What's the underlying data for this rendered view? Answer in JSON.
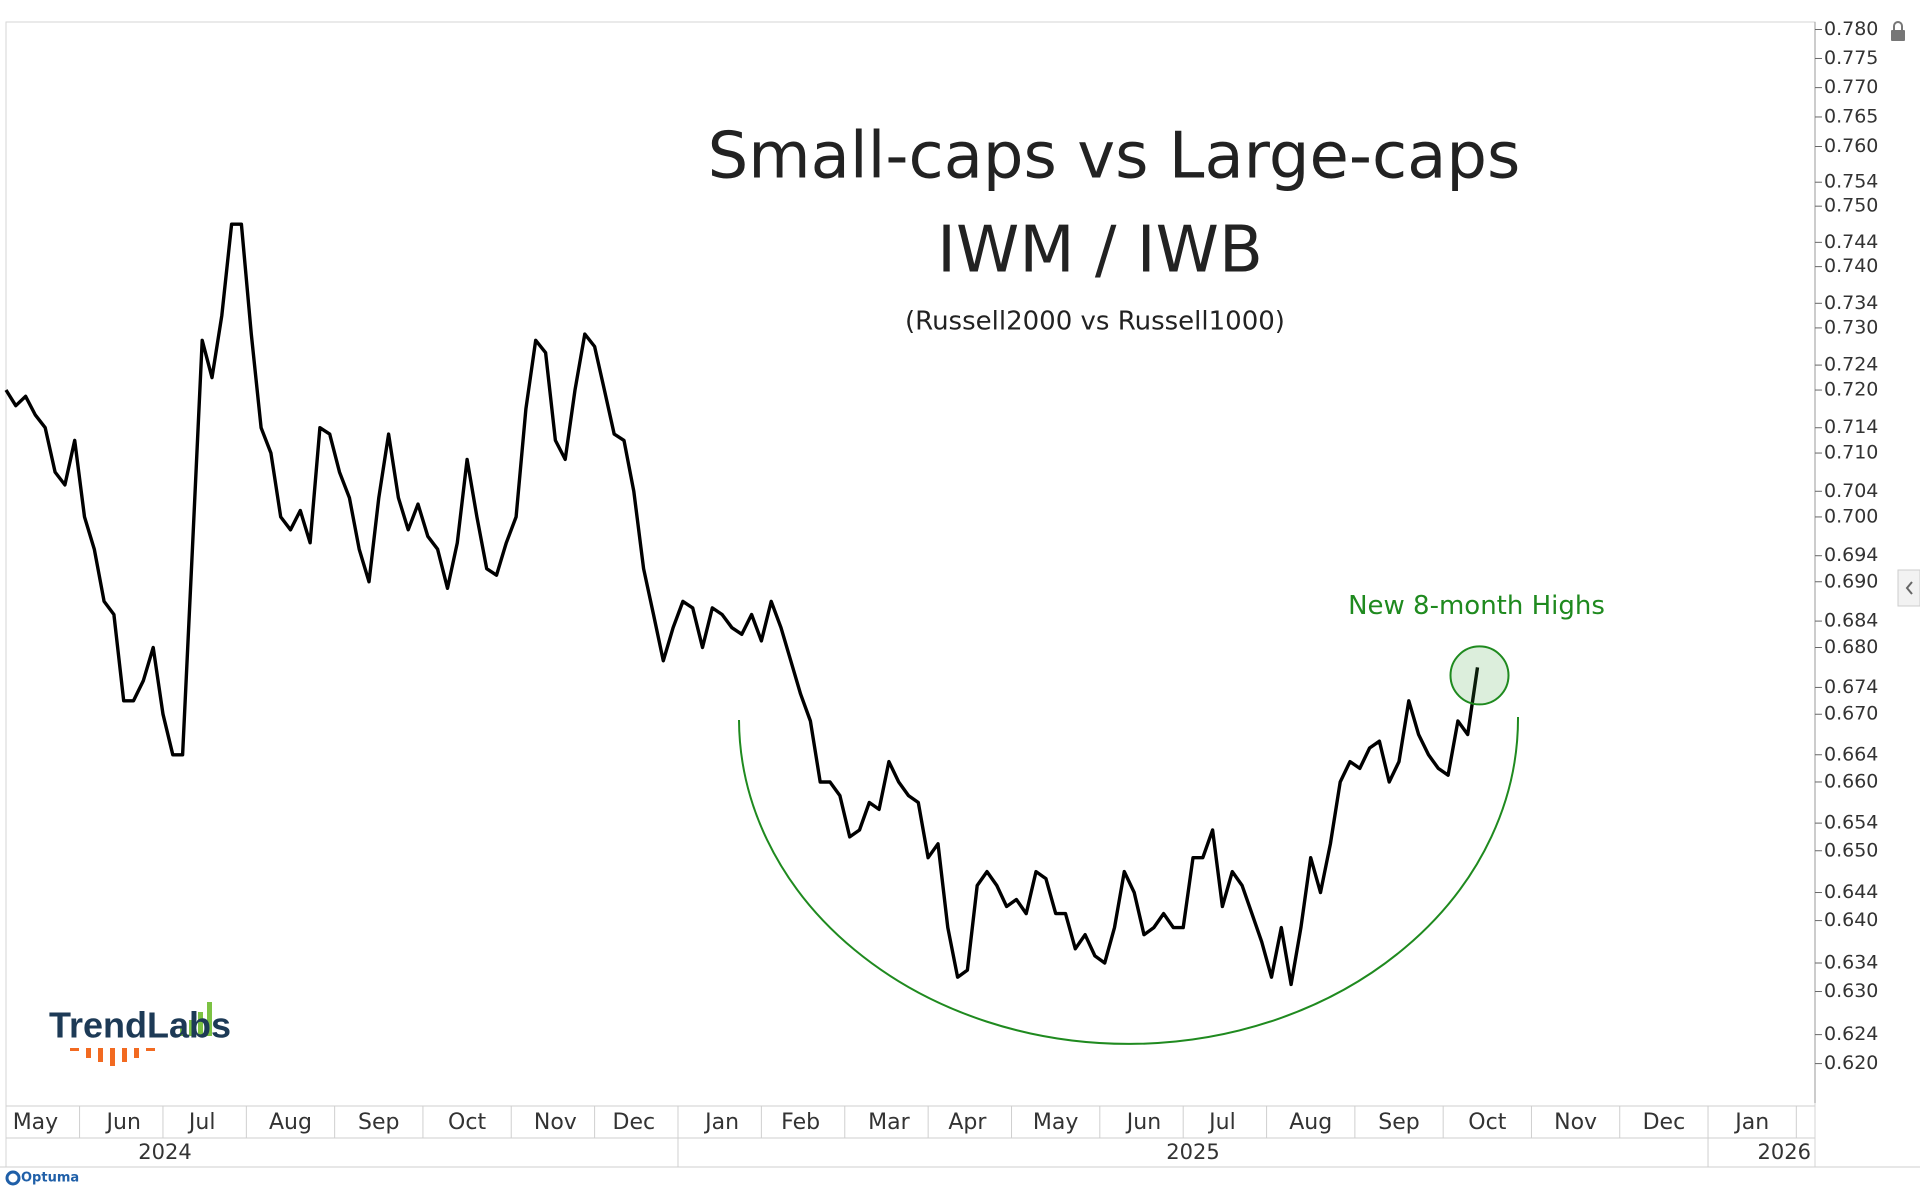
{
  "chart_data": {
    "type": "line",
    "title": "Small-caps vs Large-caps",
    "subtitle": "IWM / IWB",
    "note": "(Russell2000 vs Russell1000)",
    "annotation": "New 8-month Highs",
    "annotation_color": "#1f8a1f",
    "color": "#000000",
    "log_scale": true,
    "grid": false,
    "categories": [
      null,
      null,
      null,
      "May",
      null,
      null,
      null,
      null,
      null,
      null,
      null,
      null,
      "Jun",
      null,
      null,
      null,
      null,
      null,
      null,
      null,
      "Jul",
      null,
      null,
      null,
      null,
      null,
      null,
      null,
      null,
      "Aug",
      null,
      null,
      null,
      null,
      null,
      null,
      null,
      null,
      "Sep",
      null,
      null,
      null,
      null,
      null,
      null,
      null,
      null,
      "Oct",
      null,
      null,
      null,
      null,
      null,
      null,
      null,
      null,
      "Nov",
      null,
      null,
      null,
      null,
      null,
      null,
      null,
      "Dec",
      null,
      null,
      null,
      null,
      null,
      null,
      null,
      null,
      "Jan",
      null,
      null,
      null,
      null,
      null,
      null,
      null,
      "Feb",
      null,
      null,
      null,
      null,
      null,
      null,
      null,
      null,
      "Mar",
      null,
      null,
      null,
      null,
      null,
      null,
      null,
      "Apr",
      null,
      null,
      null,
      null,
      null,
      null,
      null,
      null,
      "May",
      null,
      null,
      null,
      null,
      null,
      null,
      null,
      null,
      "Jun",
      null,
      null,
      null,
      null,
      null,
      null,
      null,
      "Jul",
      null,
      null,
      null,
      null,
      null,
      null,
      null,
      null,
      "Aug",
      null,
      null,
      null,
      null,
      null,
      null,
      null,
      null,
      "Sep",
      null,
      null,
      null,
      null,
      null,
      null,
      null,
      null,
      "Oct",
      null,
      null,
      null,
      null,
      null,
      null,
      null,
      null,
      "Nov",
      null,
      null,
      null,
      null,
      null,
      null,
      null,
      null,
      "Dec",
      null,
      null,
      null,
      null,
      null,
      null,
      null,
      null,
      "Jan",
      null,
      null,
      null,
      null,
      null,
      null
    ],
    "values": [
      0.72,
      0.7175,
      0.719,
      0.716,
      0.714,
      0.707,
      0.705,
      0.712,
      0.7,
      0.695,
      0.687,
      0.685,
      0.672,
      0.672,
      0.675,
      0.68,
      0.67,
      0.664,
      0.664,
      0.695,
      0.728,
      0.722,
      0.732,
      0.747,
      0.747,
      0.729,
      0.714,
      0.71,
      0.7,
      0.698,
      0.701,
      0.696,
      0.714,
      0.713,
      0.707,
      0.703,
      0.695,
      0.69,
      0.703,
      0.713,
      0.703,
      0.698,
      0.702,
      0.697,
      0.695,
      0.689,
      0.696,
      0.709,
      0.7,
      0.692,
      0.691,
      0.696,
      0.7,
      0.717,
      0.728,
      0.726,
      0.712,
      0.709,
      0.72,
      0.729,
      0.727,
      0.72,
      0.713,
      0.712,
      0.704,
      0.692,
      0.685,
      0.678,
      0.683,
      0.687,
      0.686,
      0.68,
      0.686,
      0.685,
      0.683,
      0.682,
      0.685,
      0.681,
      0.687,
      0.683,
      0.678,
      0.673,
      0.669,
      0.66,
      0.66,
      0.658,
      0.652,
      0.653,
      0.657,
      0.656,
      0.663,
      0.66,
      0.658,
      0.657,
      0.649,
      0.651,
      0.639,
      0.632,
      0.633,
      0.645,
      0.647,
      0.645,
      0.642,
      0.643,
      0.641,
      0.647,
      0.646,
      0.641,
      0.641,
      0.636,
      0.638,
      0.635,
      0.634,
      0.639,
      0.647,
      0.644,
      0.638,
      0.639,
      0.641,
      0.639,
      0.639,
      0.649,
      0.649,
      0.653,
      0.642,
      0.647,
      0.645,
      0.641,
      0.637,
      0.632,
      0.639,
      0.631,
      0.639,
      0.649,
      0.644,
      0.651,
      0.66,
      0.663,
      0.662,
      0.665,
      0.666,
      0.66,
      0.663,
      0.672,
      0.667,
      0.664,
      0.662,
      0.661,
      0.669,
      0.667,
      0.677,
      null,
      null,
      null,
      null,
      null,
      null,
      null,
      null,
      null,
      null,
      null,
      null,
      null,
      null,
      null,
      null,
      null,
      null,
      null,
      null,
      null,
      null,
      null,
      null,
      null,
      null,
      null,
      null,
      null,
      null,
      null,
      null,
      null,
      null
    ],
    "years": [
      "2024",
      "2025",
      "2026"
    ],
    "ylim": [
      0.6146,
      0.7813
    ],
    "yticks": [
      {
        "value": 0.78,
        "label": "0.780"
      },
      0.775,
      {
        "value": 0.77,
        "label": "0.770"
      },
      0.765,
      {
        "value": 0.76,
        "label": "0.760"
      },
      0.754,
      {
        "value": 0.75,
        "label": "0.750"
      },
      0.744,
      {
        "value": 0.74,
        "label": "0.740"
      },
      0.734,
      {
        "value": 0.73,
        "label": "0.730"
      },
      0.724,
      {
        "value": 0.72,
        "label": "0.720"
      },
      0.714,
      {
        "value": 0.71,
        "label": "0.710"
      },
      0.704,
      {
        "value": 0.7,
        "label": "0.700"
      },
      0.694,
      {
        "value": 0.69,
        "label": "0.690"
      },
      0.684,
      {
        "value": 0.68,
        "label": "0.680"
      },
      0.674,
      {
        "value": 0.67,
        "label": "0.670"
      },
      0.664,
      {
        "value": 0.66,
        "label": "0.660"
      },
      0.654,
      {
        "value": 0.65,
        "label": "0.650"
      },
      0.644,
      {
        "value": 0.64,
        "label": "0.640"
      },
      0.634,
      {
        "value": 0.63,
        "label": "0.630"
      },
      0.624,
      {
        "value": 0.62,
        "label": "0.620"
      }
    ]
  },
  "logo_text": "TrendLabs",
  "footer_brand": "Optuma"
}
